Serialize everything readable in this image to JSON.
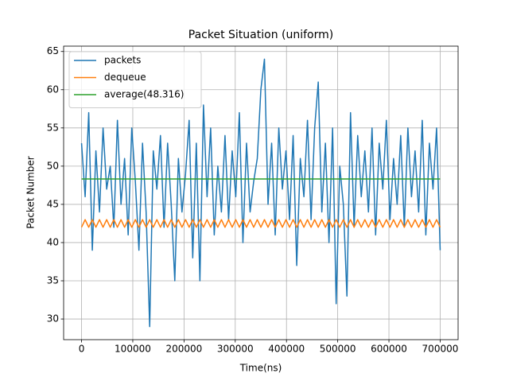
{
  "chart_data": {
    "type": "line",
    "title": "Packet Situation (uniform)",
    "xlabel": "Time(ns)",
    "ylabel": "Packet Number",
    "x": [
      0,
      7000,
      14000,
      21000,
      28000,
      35000,
      42000,
      49000,
      56000,
      63000,
      70000,
      77000,
      84000,
      91000,
      98000,
      105000,
      112000,
      119000,
      126000,
      133000,
      140000,
      147000,
      154000,
      161000,
      168000,
      175000,
      182000,
      189000,
      196000,
      203000,
      210000,
      217000,
      224000,
      231000,
      238000,
      245000,
      252000,
      259000,
      266000,
      273000,
      280000,
      287000,
      294000,
      301000,
      308000,
      315000,
      322000,
      329000,
      336000,
      343000,
      350000,
      357000,
      364000,
      371000,
      378000,
      385000,
      392000,
      399000,
      406000,
      413000,
      420000,
      427000,
      434000,
      441000,
      448000,
      455000,
      462000,
      469000,
      476000,
      483000,
      490000,
      497000,
      504000,
      511000,
      518000,
      525000,
      532000,
      539000,
      546000,
      553000,
      560000,
      567000,
      574000,
      581000,
      588000,
      595000,
      602000,
      609000,
      616000,
      623000,
      630000,
      637000,
      644000,
      651000,
      658000,
      665000,
      672000,
      679000,
      686000,
      693000,
      700000
    ],
    "series": [
      {
        "name": "packets",
        "color": "#1f77b4",
        "values": [
          53,
          46,
          57,
          39,
          52,
          44,
          55,
          47,
          50,
          42,
          56,
          45,
          51,
          41,
          55,
          48,
          39,
          53,
          44,
          29,
          52,
          47,
          54,
          42,
          53,
          45,
          35,
          51,
          44,
          49,
          56,
          38,
          53,
          35,
          58,
          46,
          55,
          41,
          50,
          44,
          54,
          43,
          52,
          46,
          57,
          40,
          53,
          44,
          48,
          51,
          60,
          64,
          45,
          53,
          41,
          55,
          47,
          52,
          43,
          54,
          37,
          51,
          46,
          56,
          43,
          55,
          61,
          44,
          53,
          40,
          55,
          32,
          50,
          45,
          33,
          57,
          42,
          54,
          46,
          52,
          44,
          55,
          41,
          53,
          47,
          56,
          43,
          51,
          45,
          54,
          42,
          55,
          46,
          52,
          44,
          56,
          41,
          53,
          47,
          55,
          39
        ]
      },
      {
        "name": "dequeue",
        "color": "#ff7f0e",
        "values": [
          42,
          43,
          42,
          43,
          42,
          43,
          42,
          43,
          42,
          43,
          42,
          43,
          42,
          43,
          42,
          43,
          42,
          43,
          42,
          43,
          42,
          43,
          42,
          43,
          42,
          43,
          42,
          43,
          42,
          43,
          42,
          43,
          42,
          43,
          42,
          43,
          42,
          43,
          42,
          43,
          42,
          43,
          42,
          43,
          42,
          43,
          42,
          43,
          42,
          43,
          42,
          43,
          42,
          43,
          42,
          43,
          42,
          43,
          42,
          43,
          42,
          43,
          42,
          43,
          42,
          43,
          42,
          43,
          42,
          43,
          42,
          43,
          42,
          43,
          42,
          43,
          42,
          43,
          42,
          43,
          42,
          43,
          42,
          43,
          42,
          43,
          42,
          43,
          42,
          43,
          42,
          43,
          42,
          43,
          42,
          43,
          42,
          43,
          42,
          43,
          42
        ]
      },
      {
        "name": "average(48.316)",
        "color": "#2ca02c",
        "values": [
          48.316,
          48.316,
          48.316,
          48.316,
          48.316,
          48.316,
          48.316,
          48.316,
          48.316,
          48.316,
          48.316,
          48.316,
          48.316,
          48.316,
          48.316,
          48.316,
          48.316,
          48.316,
          48.316,
          48.316,
          48.316,
          48.316,
          48.316,
          48.316,
          48.316,
          48.316,
          48.316,
          48.316,
          48.316,
          48.316,
          48.316,
          48.316,
          48.316,
          48.316,
          48.316,
          48.316,
          48.316,
          48.316,
          48.316,
          48.316,
          48.316,
          48.316,
          48.316,
          48.316,
          48.316,
          48.316,
          48.316,
          48.316,
          48.316,
          48.316,
          48.316,
          48.316,
          48.316,
          48.316,
          48.316,
          48.316,
          48.316,
          48.316,
          48.316,
          48.316,
          48.316,
          48.316,
          48.316,
          48.316,
          48.316,
          48.316,
          48.316,
          48.316,
          48.316,
          48.316,
          48.316,
          48.316,
          48.316,
          48.316,
          48.316,
          48.316,
          48.316,
          48.316,
          48.316,
          48.316,
          48.316,
          48.316,
          48.316,
          48.316,
          48.316,
          48.316,
          48.316,
          48.316,
          48.316,
          48.316,
          48.316,
          48.316,
          48.316,
          48.316,
          48.316,
          48.316,
          48.316,
          48.316,
          48.316,
          48.316,
          48.316
        ]
      }
    ],
    "xlim": [
      -35000,
      735000
    ],
    "xticks": [
      0,
      100000,
      200000,
      300000,
      400000,
      500000,
      600000,
      700000
    ],
    "ylim": [
      27.3,
      65.7
    ],
    "yticks": [
      30,
      35,
      40,
      45,
      50,
      55,
      60,
      65
    ],
    "grid": true,
    "legend": "upper left"
  }
}
